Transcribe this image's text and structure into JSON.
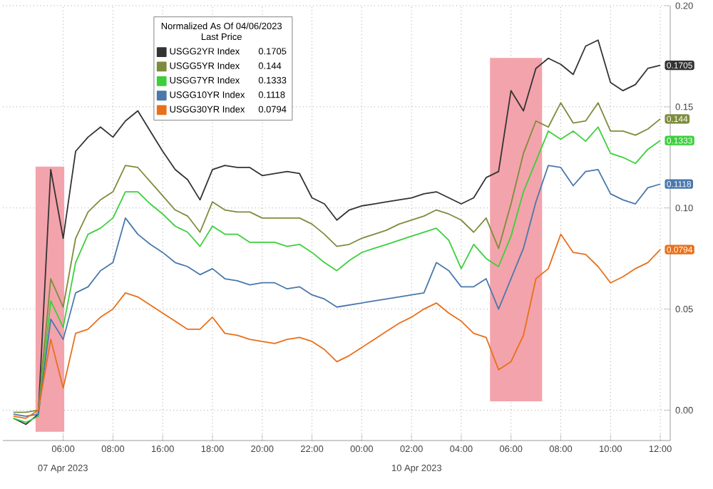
{
  "chart_data": {
    "type": "line",
    "legend_title": "Normalized As Of 04/06/2023 Last Price",
    "annotations": [
      "07 Apr 2023",
      "10 Apr 2023"
    ],
    "categories": [
      null,
      null,
      null,
      null,
      "06:00",
      null,
      null,
      null,
      "08:00",
      null,
      null,
      null,
      "16:00",
      null,
      null,
      null,
      "18:00",
      null,
      null,
      null,
      "20:00",
      null,
      null,
      null,
      "22:00",
      null,
      null,
      null,
      "00:00",
      null,
      null,
      null,
      "02:00",
      null,
      null,
      null,
      "04:00",
      null,
      null,
      null,
      "06:00",
      null,
      null,
      null,
      "08:00",
      null,
      null,
      null,
      "10:00",
      null,
      null,
      null,
      "12:00"
    ],
    "ylim": [
      -0.015,
      0.2
    ],
    "yticks": [
      {
        "value": 0,
        "label": "0.00"
      },
      {
        "value": 0.05,
        "label": "0.05"
      },
      {
        "value": 0.1,
        "label": "0.10"
      },
      {
        "value": 0.15,
        "label": "0.15"
      },
      {
        "value": 0.2,
        "label": "0.20"
      }
    ],
    "grid": true,
    "legend": "top",
    "series": [
      {
        "name": "USGG2YR Index",
        "color": "#333333",
        "values": [
          -0.004,
          -0.007,
          -0.002,
          0.119,
          0.085,
          0.128,
          0.135,
          0.14,
          0.135,
          0.143,
          0.148,
          0.138,
          0.128,
          0.119,
          0.114,
          0.104,
          0.119,
          0.121,
          0.12,
          0.12,
          0.116,
          0.117,
          0.118,
          0.117,
          0.105,
          0.102,
          0.094,
          0.099,
          0.101,
          0.102,
          0.103,
          0.104,
          0.105,
          0.107,
          0.108,
          0.105,
          0.102,
          0.105,
          0.115,
          0.118,
          0.158,
          0.148,
          0.169,
          0.174,
          0.171,
          0.166,
          0.18,
          0.183,
          0.162,
          0.158,
          0.161,
          0.169,
          0.1705
        ],
        "value_labels": [
          null,
          null,
          null,
          null,
          null,
          null,
          null,
          null,
          null,
          null,
          null,
          null,
          null,
          null,
          null,
          null,
          null,
          null,
          null,
          null,
          null,
          null,
          null,
          null,
          null,
          null,
          null,
          null,
          null,
          null,
          null,
          null,
          null,
          null,
          null,
          null,
          null,
          null,
          null,
          null,
          null,
          null,
          null,
          null,
          null,
          null,
          null,
          null,
          null,
          null,
          null,
          null,
          "0.1705"
        ]
      },
      {
        "name": "USGG5YR Index",
        "color": "#7d8c3c",
        "values": [
          -0.001,
          -0.001,
          0.0,
          0.065,
          0.051,
          0.085,
          0.098,
          0.104,
          0.108,
          0.121,
          0.12,
          0.113,
          0.106,
          0.099,
          0.096,
          0.088,
          0.103,
          0.099,
          0.098,
          0.098,
          0.095,
          0.095,
          0.095,
          0.095,
          0.092,
          0.087,
          0.081,
          0.082,
          0.085,
          0.087,
          0.089,
          0.092,
          0.094,
          0.096,
          0.099,
          0.097,
          0.094,
          0.088,
          0.095,
          0.08,
          0.102,
          0.127,
          0.143,
          0.14,
          0.152,
          0.142,
          0.143,
          0.152,
          0.138,
          0.138,
          0.136,
          0.139,
          0.144
        ],
        "value_labels": [
          null,
          null,
          null,
          null,
          null,
          null,
          null,
          null,
          null,
          null,
          null,
          null,
          null,
          null,
          null,
          null,
          null,
          null,
          null,
          null,
          null,
          null,
          null,
          null,
          null,
          null,
          null,
          null,
          null,
          null,
          null,
          null,
          null,
          null,
          null,
          null,
          null,
          null,
          null,
          null,
          null,
          null,
          null,
          null,
          null,
          null,
          null,
          null,
          null,
          null,
          null,
          null,
          "0.144"
        ]
      },
      {
        "name": "USGG7YR Index",
        "color": "#3ccf3c",
        "values": [
          -0.004,
          -0.006,
          -0.003,
          0.054,
          0.041,
          0.073,
          0.087,
          0.09,
          0.095,
          0.108,
          0.108,
          0.102,
          0.097,
          0.091,
          0.088,
          0.081,
          0.091,
          0.087,
          0.087,
          0.083,
          0.083,
          0.083,
          0.081,
          0.082,
          0.078,
          0.073,
          0.069,
          0.074,
          0.078,
          0.08,
          0.082,
          0.084,
          0.086,
          0.088,
          0.09,
          0.084,
          0.07,
          0.082,
          0.075,
          0.071,
          0.086,
          0.108,
          0.123,
          0.138,
          0.134,
          0.138,
          0.133,
          0.14,
          0.127,
          0.125,
          0.122,
          0.129,
          0.1333
        ],
        "value_labels": [
          null,
          null,
          null,
          null,
          null,
          null,
          null,
          null,
          null,
          null,
          null,
          null,
          null,
          null,
          null,
          null,
          null,
          null,
          null,
          null,
          null,
          null,
          null,
          null,
          null,
          null,
          null,
          null,
          null,
          null,
          null,
          null,
          null,
          null,
          null,
          null,
          null,
          null,
          null,
          null,
          null,
          null,
          null,
          null,
          null,
          null,
          null,
          null,
          null,
          null,
          null,
          null,
          "0.1333"
        ]
      },
      {
        "name": "USGG10YR Index",
        "color": "#4a78ac",
        "values": [
          -0.002,
          -0.003,
          -0.002,
          0.045,
          0.035,
          0.058,
          0.061,
          0.069,
          0.073,
          0.095,
          0.087,
          0.082,
          0.078,
          0.073,
          0.071,
          0.067,
          0.07,
          0.065,
          0.064,
          0.062,
          0.063,
          0.063,
          0.06,
          0.061,
          0.057,
          0.055,
          0.051,
          0.052,
          0.053,
          0.054,
          0.055,
          0.056,
          0.057,
          0.058,
          0.073,
          0.069,
          0.061,
          0.061,
          0.065,
          0.05,
          0.065,
          0.08,
          0.103,
          0.121,
          0.12,
          0.111,
          0.118,
          0.119,
          0.107,
          0.104,
          0.102,
          0.11,
          0.1118
        ],
        "value_labels": [
          null,
          null,
          null,
          null,
          null,
          null,
          null,
          null,
          null,
          null,
          null,
          null,
          null,
          null,
          null,
          null,
          null,
          null,
          null,
          null,
          null,
          null,
          null,
          null,
          null,
          null,
          null,
          null,
          null,
          null,
          null,
          null,
          null,
          null,
          null,
          null,
          null,
          null,
          null,
          null,
          null,
          null,
          null,
          null,
          null,
          null,
          null,
          null,
          null,
          null,
          null,
          null,
          "0.1118"
        ]
      },
      {
        "name": "USGG30YR Index",
        "color": "#e8701a",
        "values": [
          -0.003,
          -0.004,
          0.0,
          0.035,
          0.011,
          0.038,
          0.04,
          0.046,
          0.05,
          0.058,
          0.056,
          0.052,
          0.048,
          0.044,
          0.04,
          0.04,
          0.046,
          0.038,
          0.037,
          0.035,
          0.034,
          0.033,
          0.035,
          0.036,
          0.034,
          0.03,
          0.024,
          0.027,
          0.031,
          0.035,
          0.039,
          0.043,
          0.046,
          0.05,
          0.053,
          0.048,
          0.044,
          0.038,
          0.036,
          0.02,
          0.024,
          0.037,
          0.065,
          0.07,
          0.087,
          0.078,
          0.077,
          0.071,
          0.063,
          0.066,
          0.07,
          0.073,
          0.0794
        ],
        "value_labels": [
          null,
          null,
          null,
          null,
          null,
          null,
          null,
          null,
          null,
          null,
          null,
          null,
          null,
          null,
          null,
          null,
          null,
          null,
          null,
          null,
          null,
          null,
          null,
          null,
          null,
          null,
          null,
          null,
          null,
          null,
          null,
          null,
          null,
          null,
          null,
          null,
          null,
          null,
          null,
          null,
          null,
          null,
          null,
          null,
          null,
          null,
          null,
          null,
          null,
          null,
          null,
          null,
          "0.0794"
        ]
      }
    ]
  }
}
